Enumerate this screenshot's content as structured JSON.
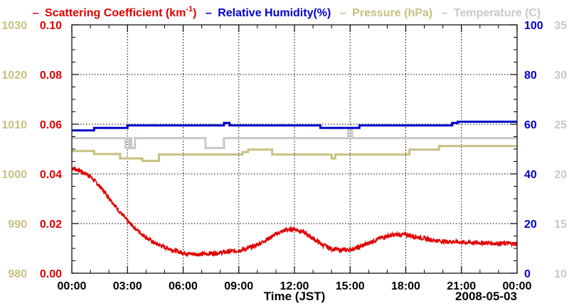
{
  "chart_data": {
    "type": "line",
    "title": "",
    "legend": [
      {
        "marker": "–",
        "label": "Scattering Coefficient (km",
        "sup": "-1",
        "suffix": ")",
        "color": "#e00000"
      },
      {
        "marker": "–",
        "label": "Relative Humidity(%)",
        "color": "#0000cc"
      },
      {
        "marker": "–",
        "label": "Pressure (hPa)",
        "color": "#c8c080"
      },
      {
        "marker": "–",
        "label": "Temperature (C)",
        "color": "#c8c8c8"
      }
    ],
    "xlabel": "Time (JST)",
    "date_label": "2008-05-03",
    "x_range": [
      0,
      24
    ],
    "x_ticks": [
      0,
      3,
      6,
      9,
      12,
      15,
      18,
      21,
      24
    ],
    "x_tick_labels": [
      "00:00",
      "03:00",
      "06:00",
      "09:00",
      "12:00",
      "15:00",
      "18:00",
      "21:00",
      "00:00"
    ],
    "grid": true,
    "axes": {
      "pressure": {
        "range": [
          980,
          1030
        ],
        "ticks": [
          "1030",
          "1020",
          "1010",
          "1000",
          "990",
          "980"
        ],
        "color": "#c8c080",
        "side": "left-outer"
      },
      "scattering": {
        "range": [
          0,
          0.1
        ],
        "ticks": [
          "0.10",
          "0.08",
          "0.06",
          "0.04",
          "0.02",
          "0.00"
        ],
        "color": "#e00000",
        "side": "left-inner"
      },
      "humidity": {
        "range": [
          0,
          100
        ],
        "ticks": [
          "100",
          "80",
          "60",
          "40",
          "20",
          "0"
        ],
        "color": "#0000cc",
        "side": "right-inner"
      },
      "temperature": {
        "range": [
          10,
          35
        ],
        "ticks": [
          "35",
          "30",
          "25",
          "20",
          "15",
          "10"
        ],
        "color": "#c8c8c8",
        "side": "right-outer"
      }
    },
    "series": [
      {
        "name": "Scattering Coefficient",
        "axis": "scattering",
        "color": "#e00000",
        "x": [
          0,
          0.5,
          1,
          1.5,
          2,
          2.5,
          3,
          3.5,
          4,
          4.5,
          5,
          5.5,
          6,
          6.5,
          7,
          7.5,
          8,
          8.5,
          9,
          9.5,
          10,
          10.5,
          11,
          11.5,
          12,
          12.5,
          13,
          13.5,
          14,
          14.5,
          15,
          15.5,
          16,
          16.5,
          17,
          17.5,
          18,
          18.5,
          19,
          19.5,
          20,
          20.5,
          21,
          21.5,
          22,
          22.5,
          23,
          23.5,
          24
        ],
        "values": [
          0.0425,
          0.041,
          0.039,
          0.035,
          0.0305,
          0.0255,
          0.021,
          0.0175,
          0.0145,
          0.012,
          0.0105,
          0.0092,
          0.0082,
          0.0077,
          0.0077,
          0.008,
          0.0083,
          0.0087,
          0.0092,
          0.01,
          0.0115,
          0.0135,
          0.0158,
          0.0173,
          0.0178,
          0.0165,
          0.014,
          0.0115,
          0.0098,
          0.0093,
          0.0095,
          0.0105,
          0.0122,
          0.0138,
          0.015,
          0.0155,
          0.0155,
          0.0148,
          0.014,
          0.0133,
          0.0128,
          0.0127,
          0.0125,
          0.0123,
          0.0123,
          0.0122,
          0.012,
          0.012,
          0.0118
        ]
      },
      {
        "name": "Relative Humidity",
        "axis": "humidity",
        "color": "#0000cc",
        "x": [
          0,
          1.2,
          1.2,
          3.0,
          3.0,
          3.2,
          3.2,
          8.2,
          8.2,
          8.5,
          8.5,
          13.4,
          13.4,
          13.7,
          13.7,
          15.5,
          15.5,
          20.5,
          20.5,
          20.8,
          20.8,
          24
        ],
        "values": [
          57.5,
          57.5,
          58.5,
          58.5,
          59.5,
          59.5,
          59.5,
          59.5,
          60.5,
          60.5,
          59.5,
          59.5,
          58.5,
          58.5,
          58.5,
          58.5,
          59.5,
          59.5,
          60.5,
          60.5,
          61,
          61
        ]
      },
      {
        "name": "Pressure",
        "axis": "pressure",
        "color": "#c8c080",
        "x": [
          0,
          1.2,
          1.2,
          2.6,
          2.6,
          3.8,
          3.8,
          4.7,
          4.7,
          9.2,
          9.2,
          9.5,
          9.5,
          10.8,
          10.8,
          14.0,
          14.0,
          14.2,
          14.2,
          18.2,
          18.2,
          19.8,
          19.8,
          24
        ],
        "values": [
          1004.6,
          1004.6,
          1004.0,
          1004.0,
          1003.1,
          1003.1,
          1002.6,
          1002.6,
          1003.9,
          1003.9,
          1004.4,
          1004.4,
          1004.9,
          1004.9,
          1003.9,
          1003.9,
          1003.1,
          1003.1,
          1003.9,
          1003.9,
          1004.9,
          1004.9,
          1005.6,
          1005.6
        ]
      },
      {
        "name": "Temperature",
        "axis": "temperature",
        "color": "#c8c8c8",
        "x": [
          0,
          2.9,
          2.9,
          3.1,
          3.1,
          3.2,
          3.2,
          3.4,
          3.4,
          7.2,
          7.2,
          8.2,
          8.2,
          8.6,
          8.6,
          14.9,
          14.9,
          15.1,
          15.1,
          24
        ],
        "values": [
          23.6,
          23.6,
          22.6,
          22.6,
          23.6,
          23.6,
          22.6,
          22.6,
          23.6,
          23.6,
          22.6,
          22.6,
          23.6,
          23.6,
          23.6,
          23.6,
          24.6,
          24.6,
          23.6,
          23.6
        ]
      }
    ]
  }
}
